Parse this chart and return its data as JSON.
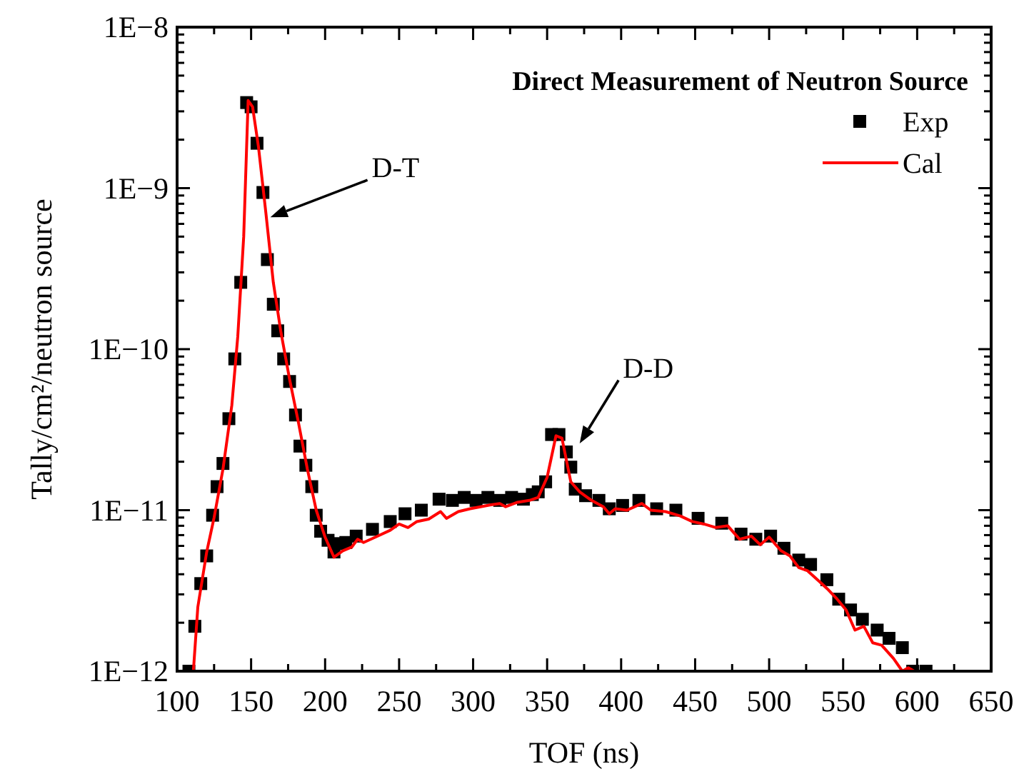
{
  "chart_data": {
    "type": "scatter",
    "title": "Direct Measurement of Neutron Source",
    "xlabel": "TOF (ns)",
    "ylabel": "Tally/cm²/neutron source",
    "log": "y",
    "grid": false,
    "legend": "top right",
    "xlim": [
      100,
      650
    ],
    "xticks": [
      100,
      {
        "value": 125,
        "label": null
      },
      150,
      {
        "value": 175,
        "label": null
      },
      200,
      {
        "value": 225,
        "label": null
      },
      250,
      {
        "value": 275,
        "label": null
      },
      300,
      {
        "value": 325,
        "label": null
      },
      350,
      {
        "value": 375,
        "label": null
      },
      400,
      {
        "value": 425,
        "label": null
      },
      450,
      {
        "value": 475,
        "label": null
      },
      500,
      {
        "value": 525,
        "label": null
      },
      550,
      {
        "value": 575,
        "label": null
      },
      600,
      {
        "value": 625,
        "label": null
      },
      650
    ],
    "ylim": [
      1e-12,
      1e-08
    ],
    "yticks": [
      {
        "value": 1e-12,
        "label": "1E−12"
      },
      {
        "value": 2e-12,
        "label": null
      },
      {
        "value": 3e-12,
        "label": null
      },
      {
        "value": 4e-12,
        "label": null
      },
      {
        "value": 5e-12,
        "label": null
      },
      {
        "value": 6e-12,
        "label": null
      },
      {
        "value": 7e-12,
        "label": null
      },
      {
        "value": 8e-12,
        "label": null
      },
      {
        "value": 9e-12,
        "label": null
      },
      {
        "value": 1e-11,
        "label": "1E−11"
      },
      {
        "value": 2e-11,
        "label": null
      },
      {
        "value": 3e-11,
        "label": null
      },
      {
        "value": 4e-11,
        "label": null
      },
      {
        "value": 5e-11,
        "label": null
      },
      {
        "value": 6e-11,
        "label": null
      },
      {
        "value": 7e-11,
        "label": null
      },
      {
        "value": 8e-11,
        "label": null
      },
      {
        "value": 9e-11,
        "label": null
      },
      {
        "value": 1e-10,
        "label": "1E−10"
      },
      {
        "value": 2e-10,
        "label": null
      },
      {
        "value": 3e-10,
        "label": null
      },
      {
        "value": 4e-10,
        "label": null
      },
      {
        "value": 5e-10,
        "label": null
      },
      {
        "value": 6e-10,
        "label": null
      },
      {
        "value": 7e-10,
        "label": null
      },
      {
        "value": 8e-10,
        "label": null
      },
      {
        "value": 9e-10,
        "label": null
      },
      {
        "value": 1e-09,
        "label": "1E−9"
      },
      {
        "value": 2e-09,
        "label": null
      },
      {
        "value": 3e-09,
        "label": null
      },
      {
        "value": 4e-09,
        "label": null
      },
      {
        "value": 5e-09,
        "label": null
      },
      {
        "value": 6e-09,
        "label": null
      },
      {
        "value": 7e-09,
        "label": null
      },
      {
        "value": 8e-09,
        "label": null
      },
      {
        "value": 9e-09,
        "label": null
      },
      {
        "value": 1e-08,
        "label": "1E−8"
      }
    ],
    "annotations": [
      "D-T",
      "D-D"
    ],
    "series": [
      {
        "name": "Exp",
        "marker": "square",
        "color": "#000000",
        "x": [
          108,
          112,
          116,
          120,
          124,
          127,
          131,
          135,
          139,
          143,
          147,
          150,
          154,
          158,
          161,
          165,
          168,
          172,
          176,
          180,
          183,
          187,
          191,
          194,
          197,
          202,
          206,
          210,
          214,
          221,
          232,
          244,
          254,
          265,
          277,
          286,
          294,
          302,
          310,
          318,
          326,
          334,
          340,
          344,
          349,
          353,
          358,
          363,
          366,
          369,
          376,
          385,
          392,
          401,
          412,
          424,
          437,
          452,
          468,
          481,
          491,
          501,
          510,
          520,
          528,
          539,
          547,
          555,
          563,
          573,
          581,
          590,
          597,
          606
        ],
        "values": [
          1e-12,
          1.9e-12,
          3.5e-12,
          5.2e-12,
          9.3e-12,
          1.4e-11,
          1.95e-11,
          3.7e-11,
          8.7e-11,
          2.6e-10,
          3.4e-09,
          3.2e-09,
          1.9e-09,
          9.4e-10,
          3.6e-10,
          1.9e-10,
          1.3e-10,
          8.7e-11,
          6.3e-11,
          3.9e-11,
          2.5e-11,
          1.9e-11,
          1.4e-11,
          9.3e-12,
          7.4e-12,
          6.5e-12,
          5.5e-12,
          6.2e-12,
          6.3e-12,
          6.9e-12,
          7.6e-12,
          8.5e-12,
          9.5e-12,
          1e-11,
          1.17e-11,
          1.15e-11,
          1.2e-11,
          1.15e-11,
          1.2e-11,
          1.15e-11,
          1.2e-11,
          1.17e-11,
          1.25e-11,
          1.3e-11,
          1.5e-11,
          2.95e-11,
          2.95e-11,
          2.3e-11,
          1.85e-11,
          1.35e-11,
          1.23e-11,
          1.15e-11,
          1.02e-11,
          1.07e-11,
          1.15e-11,
          1.02e-11,
          1e-11,
          8.9e-12,
          8.3e-12,
          7.1e-12,
          6.6e-12,
          6.9e-12,
          5.8e-12,
          4.9e-12,
          4.6e-12,
          3.7e-12,
          2.8e-12,
          2.4e-12,
          2.1e-12,
          1.8e-12,
          1.6e-12,
          1.4e-12,
          1e-12,
          1e-12
        ]
      },
      {
        "name": "Cal",
        "type": "line",
        "line_style": "solid",
        "color": "#ff0000",
        "x": [
          111,
          114,
          120,
          125,
          131,
          137,
          141,
          145,
          148,
          151,
          155,
          160,
          165,
          170,
          176,
          182,
          188,
          194,
          200,
          206,
          212,
          218,
          222,
          226,
          234,
          244,
          250,
          256,
          262,
          270,
          278,
          282,
          290,
          298,
          305,
          312,
          318,
          322,
          330,
          338,
          344,
          350,
          356,
          360,
          366,
          372,
          380,
          388,
          392,
          396,
          404,
          414,
          420,
          430,
          440,
          448,
          456,
          464,
          472,
          480,
          488,
          494,
          500,
          508,
          514,
          520,
          526,
          534,
          540,
          546,
          552,
          558,
          564,
          570,
          576,
          584,
          590,
          594,
          598
        ],
        "values": [
          1e-12,
          2.5e-12,
          5.5e-12,
          9e-12,
          1.8e-11,
          4.5e-11,
          1.2e-10,
          5e-10,
          3.5e-09,
          3.2e-09,
          1.8e-09,
          7e-10,
          2.6e-10,
          1.3e-10,
          6.5e-11,
          3.5e-11,
          1.8e-11,
          1e-11,
          6.8e-12,
          5.1e-12,
          5.6e-12,
          5.9e-12,
          6.6e-12,
          6.3e-12,
          6.8e-12,
          7.5e-12,
          8.2e-12,
          7.8e-12,
          8.5e-12,
          8.8e-12,
          9.8e-12,
          8.9e-12,
          9.8e-12,
          1.02e-11,
          1.05e-11,
          1.08e-11,
          1.1e-11,
          1.05e-11,
          1.12e-11,
          1.15e-11,
          1.2e-11,
          1.6e-11,
          2.9e-11,
          2.8e-11,
          1.5e-11,
          1.3e-11,
          1.15e-11,
          1.05e-11,
          9.5e-12,
          1.02e-11,
          1e-11,
          1.1e-11,
          1e-11,
          9.8e-12,
          9.2e-12,
          8.5e-12,
          8.2e-12,
          7.8e-12,
          8e-12,
          6.6e-12,
          6.9e-12,
          6.1e-12,
          6.8e-12,
          5.6e-12,
          5.2e-12,
          4.4e-12,
          4.2e-12,
          3.6e-12,
          3.2e-12,
          2.8e-12,
          2.4e-12,
          1.8e-12,
          1.9e-12,
          1.5e-12,
          1.45e-12,
          1.2e-12,
          1e-12,
          1.05e-12,
          1e-12
        ]
      }
    ]
  }
}
